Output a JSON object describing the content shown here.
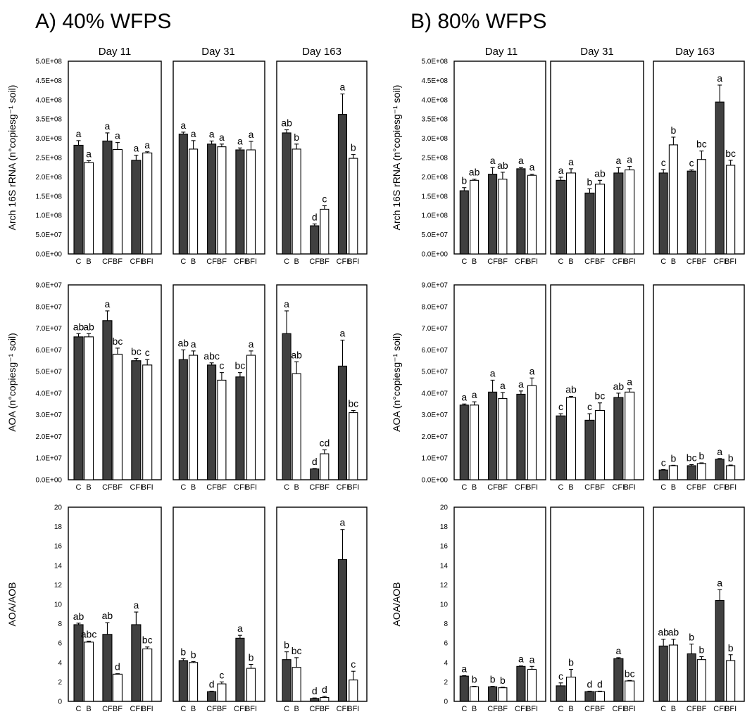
{
  "panels": [
    {
      "id": "A",
      "title": "A) 40% WFPS"
    },
    {
      "id": "B",
      "title": "B) 80% WFPS"
    }
  ],
  "days": [
    "Day  11",
    "Day 31",
    "Day 163"
  ],
  "categories": [
    "C",
    "B",
    "CF",
    "BF",
    "CFI",
    "BFI"
  ],
  "colors": {
    "dark_bar": "#404040",
    "light_bar": "#ffffff",
    "axis": "#000000"
  },
  "chart_data": [
    {
      "type": "bar",
      "panel": "A",
      "row": "arch",
      "ylabel": "Arch 16S rRNA (n°copiesg⁻¹ soil)",
      "ylim": [
        0,
        500000000
      ],
      "yticks": [
        "0.0E+00",
        "5.0E+07",
        "1.0E+08",
        "1.5E+08",
        "2.0E+08",
        "2.5E+08",
        "3.0E+08",
        "3.5E+08",
        "4.0E+08",
        "4.5E+08",
        "5.0E+08"
      ],
      "days": [
        {
          "values": [
            282000000,
            237000000,
            293000000,
            271000000,
            243000000,
            262000000
          ],
          "errors": [
            12000000,
            5000000,
            21000000,
            18000000,
            13000000,
            3000000
          ],
          "letters": [
            "a",
            "a",
            "a",
            "a",
            "a",
            "a"
          ]
        },
        {
          "values": [
            311000000,
            272000000,
            285000000,
            278000000,
            270000000,
            270000000
          ],
          "errors": [
            5000000,
            22000000,
            8000000,
            7000000,
            5000000,
            22000000
          ],
          "letters": [
            "a",
            "a",
            "a",
            "a",
            "a",
            "a"
          ]
        },
        {
          "values": [
            314000000,
            272000000,
            73000000,
            116000000,
            362000000,
            248000000
          ],
          "errors": [
            8000000,
            13000000,
            5000000,
            9000000,
            53000000,
            10000000
          ],
          "letters": [
            "ab",
            "b",
            "d",
            "c",
            "a",
            "b"
          ]
        }
      ]
    },
    {
      "type": "bar",
      "panel": "A",
      "row": "aoa",
      "ylabel": "AOA (n°copiesg⁻¹ soil)",
      "ylim": [
        0,
        90000000
      ],
      "yticks": [
        "0.0E+00",
        "1.0E+07",
        "2.0E+07",
        "3.0E+07",
        "4.0E+07",
        "5.0E+07",
        "6.0E+07",
        "7.0E+07",
        "8.0E+07",
        "9.0E+07"
      ],
      "days": [
        {
          "values": [
            66000000,
            66000000,
            73500000,
            58000000,
            55000000,
            53000000
          ],
          "errors": [
            1500000,
            1500000,
            4500000,
            2800000,
            1000000,
            2500000
          ],
          "letters": [
            "ab",
            "ab",
            "a",
            "bc",
            "bc",
            "c"
          ]
        },
        {
          "values": [
            55500000,
            57500000,
            53000000,
            46000000,
            47500000,
            57500000
          ],
          "errors": [
            4500000,
            2000000,
            1000000,
            3500000,
            2000000,
            2000000
          ],
          "letters": [
            "ab",
            "a",
            "abc",
            "c",
            "bc",
            "a"
          ]
        },
        {
          "values": [
            67500000,
            49000000,
            5000000,
            12000000,
            52500000,
            31000000
          ],
          "errors": [
            10500000,
            5500000,
            200000,
            1800000,
            12000000,
            1000000
          ],
          "letters": [
            "a",
            "ab",
            "d",
            "cd",
            "a",
            "bc"
          ]
        }
      ]
    },
    {
      "type": "bar",
      "panel": "A",
      "row": "ratio",
      "ylabel": "AOA/AOB",
      "ylim": [
        0,
        20
      ],
      "yticks": [
        "0",
        "2",
        "4",
        "6",
        "8",
        "10",
        "12",
        "14",
        "16",
        "18",
        "20"
      ],
      "days": [
        {
          "values": [
            7.9,
            6.1,
            6.9,
            2.8,
            7.9,
            5.4
          ],
          "errors": [
            0.15,
            0.1,
            1.2,
            0.05,
            1.3,
            0.2
          ],
          "letters": [
            "ab",
            "abc",
            "ab",
            "d",
            "a",
            "bc"
          ]
        },
        {
          "values": [
            4.2,
            4.0,
            1.0,
            1.8,
            6.5,
            3.4
          ],
          "errors": [
            0.2,
            0.1,
            0.05,
            0.2,
            0.3,
            0.4
          ],
          "letters": [
            "b",
            "b",
            "d",
            "c",
            "a",
            "b"
          ]
        },
        {
          "values": [
            4.3,
            3.5,
            0.3,
            0.4,
            14.6,
            2.2
          ],
          "errors": [
            0.8,
            1.0,
            0.05,
            0.1,
            3.1,
            0.9
          ],
          "letters": [
            "b",
            "bc",
            "d",
            "d",
            "a",
            "c"
          ]
        }
      ]
    },
    {
      "type": "bar",
      "panel": "B",
      "row": "arch",
      "ylabel": "Arch 16S rRNA (n°copiesg⁻¹ soil)",
      "ylim": [
        0,
        500000000
      ],
      "yticks": [
        "0.0E+00",
        "5.0E+07",
        "1.0E+08",
        "1.5E+08",
        "2.0E+08",
        "2.5E+08",
        "3.0E+08",
        "3.5E+08",
        "4.0E+08",
        "4.5E+08",
        "5.0E+08"
      ],
      "days": [
        {
          "values": [
            164000000,
            191000000,
            207000000,
            194000000,
            221000000,
            204000000
          ],
          "errors": [
            8000000,
            3000000,
            17000000,
            18000000,
            3000000,
            3000000
          ],
          "letters": [
            "b",
            "ab",
            "a",
            "ab",
            "a",
            "a"
          ]
        },
        {
          "values": [
            191000000,
            210000000,
            158000000,
            181000000,
            210000000,
            218000000
          ],
          "errors": [
            8000000,
            11000000,
            11000000,
            10000000,
            14000000,
            9000000
          ],
          "letters": [
            "a",
            "a",
            "b",
            "ab",
            "a",
            "a"
          ]
        },
        {
          "values": [
            210000000,
            283000000,
            215000000,
            245000000,
            394000000,
            230000000
          ],
          "errors": [
            9000000,
            20000000,
            3000000,
            22000000,
            44000000,
            13000000
          ],
          "letters": [
            "c",
            "b",
            "c",
            "bc",
            "a",
            "bc"
          ]
        }
      ]
    },
    {
      "type": "bar",
      "panel": "B",
      "row": "aoa",
      "ylabel": "AOA (n°copiesg⁻¹ soil)",
      "ylim": [
        0,
        90000000
      ],
      "yticks": [
        "0.0E+00",
        "1.0E+07",
        "2.0E+07",
        "3.0E+07",
        "4.0E+07",
        "5.0E+07",
        "6.0E+07",
        "7.0E+07",
        "8.0E+07",
        "9.0E+07"
      ],
      "days": [
        {
          "values": [
            34500000,
            34500000,
            40500000,
            37500000,
            39500000,
            43500000
          ],
          "errors": [
            500000,
            1500000,
            5500000,
            2800000,
            1500000,
            3500000
          ],
          "letters": [
            "a",
            "a",
            "a",
            "a",
            "a",
            "a"
          ]
        },
        {
          "values": [
            29500000,
            38000000,
            27500000,
            32000000,
            38000000,
            40500000
          ],
          "errors": [
            1000000,
            500000,
            3000000,
            3500000,
            2000000,
            1500000
          ],
          "letters": [
            "c",
            "ab",
            "c",
            "bc",
            "ab",
            "a"
          ]
        },
        {
          "values": [
            4500000,
            6500000,
            6500000,
            7500000,
            9500000,
            6500000
          ],
          "errors": [
            200000,
            200000,
            500000,
            300000,
            300000,
            300000
          ],
          "letters": [
            "c",
            "b",
            "bc",
            "b",
            "a",
            "b"
          ]
        }
      ]
    },
    {
      "type": "bar",
      "panel": "B",
      "row": "ratio",
      "ylabel": "AOA/AOB",
      "ylim": [
        0,
        20
      ],
      "yticks": [
        "0",
        "2",
        "4",
        "6",
        "8",
        "10",
        "12",
        "14",
        "16",
        "18",
        "20"
      ],
      "days": [
        {
          "values": [
            2.6,
            1.5,
            1.5,
            1.4,
            3.6,
            3.3
          ],
          "errors": [
            0.05,
            0.05,
            0.05,
            0.05,
            0.05,
            0.3
          ],
          "letters": [
            "a",
            "b",
            "b",
            "b",
            "a",
            "a"
          ]
        },
        {
          "values": [
            1.6,
            2.5,
            1.0,
            1.0,
            4.4,
            2.1
          ],
          "errors": [
            0.3,
            0.8,
            0.05,
            0.05,
            0.1,
            0.05
          ],
          "letters": [
            "c",
            "b",
            "d",
            "d",
            "a",
            "bc"
          ]
        },
        {
          "values": [
            5.7,
            5.8,
            4.9,
            4.3,
            10.4,
            4.2
          ],
          "errors": [
            0.7,
            0.6,
            1.0,
            0.3,
            1.1,
            0.6
          ],
          "letters": [
            "ab",
            "ab",
            "b",
            "b",
            "a",
            "b"
          ]
        }
      ]
    }
  ]
}
